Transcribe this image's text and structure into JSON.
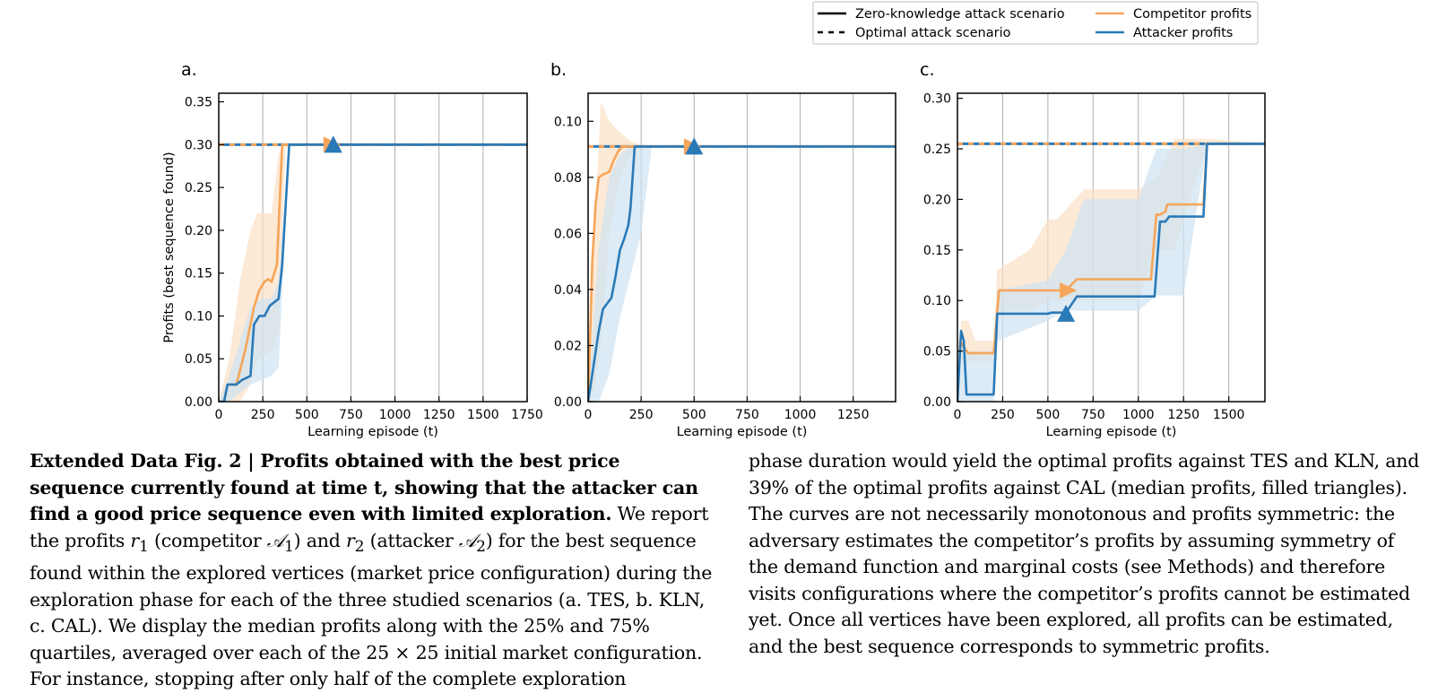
{
  "legend": {
    "items": [
      {
        "label": "Zero-knowledge attack scenario",
        "style": "solid",
        "color": "#000000"
      },
      {
        "label": "Optimal attack scenario",
        "style": "dashed",
        "color": "#000000"
      },
      {
        "label": "Competitor profits",
        "style": "solid",
        "color": "#f5a55a"
      },
      {
        "label": "Attacker profits",
        "style": "solid",
        "color": "#2a7ab8"
      }
    ]
  },
  "colors": {
    "competitor": "#f5a55a",
    "attacker": "#2a7ab8",
    "competitor_band": "#fbe0c4",
    "attacker_band": "#cde3f2",
    "overlap_band": "#e4e4df"
  },
  "chart_data": [
    {
      "panel": "a.",
      "type": "line",
      "xlabel": "Learning episode (t)",
      "ylabel": "Profits (best sequence found)",
      "xlim": [
        0,
        1750
      ],
      "ylim": [
        0,
        0.36
      ],
      "xticks": [
        0,
        250,
        500,
        750,
        1000,
        1250,
        1500,
        1750
      ],
      "yticks": [
        0.0,
        0.05,
        0.1,
        0.15,
        0.2,
        0.25,
        0.3,
        0.35
      ],
      "ytick_labels": [
        "0.00",
        "0.05",
        "0.10",
        "0.15",
        "0.20",
        "0.25",
        "0.30",
        "0.35"
      ],
      "grid": "x",
      "optimal_value": 0.3,
      "series": [
        {
          "name": "Competitor profits",
          "x": [
            0,
            30,
            50,
            100,
            150,
            200,
            230,
            260,
            280,
            300,
            330,
            360,
            380,
            1750
          ],
          "y": [
            0,
            0,
            0.02,
            0.02,
            0.06,
            0.11,
            0.13,
            0.14,
            0.143,
            0.14,
            0.16,
            0.3,
            0.3,
            0.3
          ]
        },
        {
          "name": "Attacker profits",
          "x": [
            0,
            30,
            50,
            100,
            130,
            180,
            200,
            230,
            260,
            290,
            340,
            360,
            400,
            1750
          ],
          "y": [
            0,
            0,
            0.02,
            0.02,
            0.025,
            0.03,
            0.09,
            0.1,
            0.1,
            0.112,
            0.12,
            0.16,
            0.3,
            0.3
          ]
        }
      ],
      "bands": [
        {
          "series": "Competitor profits",
          "x": [
            0,
            60,
            120,
            180,
            220,
            300,
            340,
            380,
            1750
          ],
          "upper": [
            0,
            0.05,
            0.14,
            0.2,
            0.22,
            0.22,
            0.29,
            0.3,
            0.3
          ],
          "lower": [
            0,
            0,
            0,
            0.02,
            0.05,
            0.06,
            0.08,
            0.3,
            0.3
          ]
        },
        {
          "series": "Attacker profits",
          "x": [
            0,
            60,
            120,
            180,
            240,
            300,
            340,
            400,
            1750
          ],
          "upper": [
            0,
            0.03,
            0.07,
            0.11,
            0.12,
            0.12,
            0.14,
            0.3,
            0.3
          ],
          "lower": [
            0,
            0,
            0.01,
            0.02,
            0.025,
            0.03,
            0.04,
            0.3,
            0.3
          ]
        }
      ],
      "markers": [
        {
          "series": "Competitor profits",
          "shape": "triangle-right",
          "x": 640,
          "y": 0.3
        },
        {
          "series": "Attacker profits",
          "shape": "triangle-up",
          "x": 650,
          "y": 0.3
        }
      ]
    },
    {
      "panel": "b.",
      "type": "line",
      "xlabel": "Learning episode (t)",
      "ylabel": "",
      "xlim": [
        0,
        1450
      ],
      "ylim": [
        0,
        0.11
      ],
      "xticks": [
        0,
        250,
        500,
        750,
        1000,
        1250
      ],
      "yticks": [
        0.0,
        0.02,
        0.04,
        0.06,
        0.08,
        0.1
      ],
      "ytick_labels": [
        "0.00",
        "0.02",
        "0.04",
        "0.06",
        "0.08",
        "0.10"
      ],
      "grid": "x",
      "optimal_value": 0.091,
      "series": [
        {
          "name": "Competitor profits",
          "x": [
            0,
            10,
            20,
            35,
            50,
            70,
            100,
            120,
            140,
            160,
            180,
            1450
          ],
          "y": [
            0,
            0.025,
            0.05,
            0.07,
            0.08,
            0.081,
            0.082,
            0.086,
            0.089,
            0.091,
            0.091,
            0.091
          ]
        },
        {
          "name": "Attacker profits",
          "x": [
            0,
            10,
            30,
            50,
            70,
            90,
            110,
            130,
            150,
            170,
            190,
            200,
            220,
            1450
          ],
          "y": [
            0,
            0.005,
            0.015,
            0.025,
            0.033,
            0.035,
            0.037,
            0.045,
            0.054,
            0.058,
            0.063,
            0.069,
            0.091,
            0.091
          ]
        }
      ],
      "bands": [
        {
          "series": "Competitor profits",
          "x": [
            0,
            30,
            60,
            100,
            150,
            200,
            260,
            1450
          ],
          "upper": [
            0,
            0.06,
            0.107,
            0.1,
            0.096,
            0.093,
            0.091,
            0.091
          ],
          "lower": [
            0,
            0.005,
            0.02,
            0.06,
            0.08,
            0.088,
            0.091,
            0.091
          ]
        },
        {
          "series": "Attacker profits",
          "x": [
            0,
            50,
            100,
            150,
            200,
            250,
            300,
            1450
          ],
          "upper": [
            0,
            0.055,
            0.08,
            0.088,
            0.091,
            0.091,
            0.091,
            0.091
          ],
          "lower": [
            0,
            0,
            0.01,
            0.03,
            0.045,
            0.06,
            0.091,
            0.091
          ]
        }
      ],
      "markers": [
        {
          "series": "Competitor profits",
          "shape": "triangle-right",
          "x": 490,
          "y": 0.091
        },
        {
          "series": "Attacker profits",
          "shape": "triangle-up",
          "x": 500,
          "y": 0.091
        }
      ]
    },
    {
      "panel": "c.",
      "type": "line",
      "xlabel": "Learning episode (t)",
      "ylabel": "",
      "xlim": [
        0,
        1700
      ],
      "ylim": [
        0,
        0.305
      ],
      "xticks": [
        0,
        250,
        500,
        750,
        1000,
        1250,
        1500
      ],
      "yticks": [
        0.0,
        0.05,
        0.1,
        0.15,
        0.2,
        0.25,
        0.3
      ],
      "ytick_labels": [
        "0.00",
        "0.05",
        "0.10",
        "0.15",
        "0.20",
        "0.25",
        "0.30"
      ],
      "grid": "x",
      "optimal_value": 0.255,
      "series": [
        {
          "name": "Competitor profits",
          "x": [
            0,
            15,
            30,
            60,
            100,
            200,
            230,
            600,
            660,
            1070,
            1100,
            1120,
            1150,
            1160,
            1250,
            1260,
            1360,
            1380,
            1700
          ],
          "y": [
            0,
            0.06,
            0.055,
            0.048,
            0.048,
            0.048,
            0.11,
            0.11,
            0.121,
            0.121,
            0.185,
            0.185,
            0.188,
            0.195,
            0.195,
            0.195,
            0.195,
            0.255,
            0.255
          ]
        },
        {
          "name": "Attacker profits",
          "x": [
            0,
            20,
            35,
            50,
            200,
            220,
            500,
            520,
            600,
            660,
            1090,
            1120,
            1150,
            1170,
            1250,
            1360,
            1380,
            1700
          ],
          "y": [
            0,
            0.07,
            0.06,
            0.007,
            0.007,
            0.087,
            0.087,
            0.088,
            0.088,
            0.104,
            0.104,
            0.178,
            0.178,
            0.183,
            0.183,
            0.183,
            0.255,
            0.255
          ]
        }
      ],
      "bands": [
        {
          "series": "Competitor profits",
          "x": [
            0,
            20,
            60,
            100,
            200,
            220,
            400,
            500,
            550,
            700,
            1000,
            1100,
            1200,
            1380,
            1700
          ],
          "upper": [
            0,
            0.08,
            0.08,
            0.06,
            0.06,
            0.13,
            0.15,
            0.18,
            0.18,
            0.21,
            0.21,
            0.22,
            0.26,
            0.26,
            0.255
          ],
          "lower": [
            0,
            0.04,
            0.04,
            0.04,
            0.04,
            0.09,
            0.09,
            0.1,
            0.1,
            0.1,
            0.1,
            0.15,
            0.15,
            0.255,
            0.255
          ]
        },
        {
          "series": "Attacker profits",
          "x": [
            0,
            20,
            50,
            200,
            220,
            500,
            600,
            700,
            1000,
            1100,
            1250,
            1380,
            1700
          ],
          "upper": [
            0,
            0.06,
            0.05,
            0.05,
            0.11,
            0.12,
            0.15,
            0.2,
            0.2,
            0.25,
            0.25,
            0.255,
            0.255
          ],
          "lower": [
            0,
            0.0,
            0.0,
            0.0,
            0.06,
            0.08,
            0.09,
            0.09,
            0.09,
            0.105,
            0.105,
            0.255,
            0.255
          ]
        }
      ],
      "markers": [
        {
          "series": "Competitor profits",
          "shape": "triangle-right",
          "x": 610,
          "y": 0.11
        },
        {
          "series": "Attacker profits",
          "shape": "triangle-up",
          "x": 600,
          "y": 0.087
        }
      ]
    }
  ],
  "caption": {
    "left": {
      "bold_text": "Extended Data Fig. 2 | Profits obtained with the best price sequence currently found at time t, showing that the attacker can find a good price sequence even with limited exploration.",
      "text_1": " We report the profits ",
      "r1": "r",
      "r1_sub": "1",
      "text_2": " (competitor ",
      "a1": "𝒜",
      "a1_sub": "1",
      "text_3": ") and ",
      "r2": "r",
      "r2_sub": "2",
      "text_4": " (attacker ",
      "a2": "𝒜",
      "a2_sub": "2",
      "text_5": ") for the best sequence found within the explored vertices (market price configuration) during the exploration phase for each of the three studied scenarios (a. TES, b. KLN, c. CAL). We display the median profits along with the 25% and 75% quartiles, averaged over each of the 25 × 25 initial market configuration. For instance, stopping after only half of the complete exploration"
    },
    "right": "phase duration would yield the optimal profits against TES and KLN, and 39% of the optimal profits against CAL (median profits, filled triangles). The curves are not necessarily monotonous and profits symmetric: the adversary estimates the competitor’s profits by assuming symmetry of the demand function and marginal costs (see Methods) and therefore visits configurations where the competitor’s profits cannot be estimated yet. Once all vertices have been explored, all profits can be estimated, and the best sequence corresponds to symmetric profits."
  }
}
